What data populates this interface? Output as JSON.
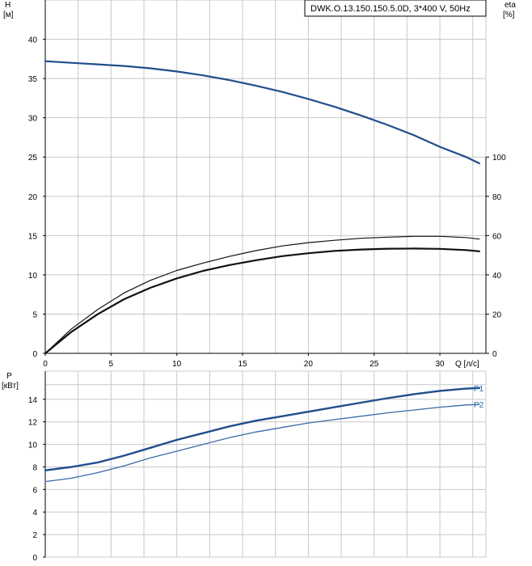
{
  "model_label": "DWK.O.13.150.150.5.0D, 3*400 V, 50Hz",
  "colors": {
    "curve": "#1f4e8c",
    "curve_p2": "#3a6aa8",
    "grid": "#c8c8c8",
    "axis": "#000000",
    "text": "#000000",
    "legend_text": "#1f6fb2"
  },
  "chart_data": [
    {
      "type": "line",
      "name": "head-efficiency",
      "xlabel": "Q [л/с]",
      "ylabel_left": "H\n[м]",
      "ylabel_right": "eta\n[%]",
      "x_range": [
        0,
        33.5
      ],
      "ylim_left": [
        0,
        45
      ],
      "ylim_right": [
        0,
        180
      ],
      "x_ticks": [
        0,
        5,
        10,
        15,
        20,
        25,
        30
      ],
      "y_ticks_left": [
        0,
        5,
        10,
        15,
        20,
        25,
        30,
        35,
        40
      ],
      "y_ticks_right": [
        0,
        20,
        40,
        60,
        80,
        100
      ],
      "grid": true,
      "series": [
        {
          "axis": "left",
          "x": [
            0,
            2,
            4,
            6,
            8,
            10,
            12,
            14,
            16,
            18,
            20,
            22,
            24,
            26,
            28,
            30,
            32,
            33
          ],
          "y": [
            37.2,
            37.0,
            36.8,
            36.6,
            36.3,
            35.9,
            35.4,
            34.8,
            34.1,
            33.3,
            32.4,
            31.4,
            30.3,
            29.1,
            27.8,
            26.3,
            25.0,
            24.2
          ]
        },
        {
          "axis": "right",
          "x": [
            0,
            2,
            4,
            6,
            8,
            10,
            12,
            14,
            16,
            18,
            20,
            22,
            24,
            26,
            28,
            30,
            32,
            33
          ],
          "y": [
            0,
            12.5,
            22.4,
            30.8,
            37.2,
            42.2,
            46.0,
            49.4,
            52.3,
            54.7,
            56.4,
            57.6,
            58.6,
            59.2,
            59.6,
            59.6,
            59.0,
            58.2
          ]
        },
        {
          "axis": "right",
          "x": [
            0,
            2,
            4,
            6,
            8,
            10,
            12,
            14,
            16,
            18,
            20,
            22,
            24,
            26,
            28,
            30,
            32,
            33
          ],
          "y": [
            0,
            11.0,
            20.0,
            27.6,
            33.4,
            38.2,
            42.0,
            45.0,
            47.4,
            49.5,
            51.0,
            52.2,
            52.9,
            53.3,
            53.4,
            53.2,
            52.6,
            52.0
          ]
        }
      ]
    },
    {
      "type": "line",
      "name": "power",
      "ylabel": "P\n[кВт]",
      "x_range": [
        0,
        33.5
      ],
      "ylim": [
        0,
        16.5
      ],
      "y_ticks": [
        0,
        2,
        4,
        6,
        8,
        10,
        12,
        14
      ],
      "grid": true,
      "series": [
        {
          "name": "P1",
          "x": [
            0,
            2,
            4,
            6,
            8,
            10,
            12,
            14,
            16,
            18,
            20,
            22,
            24,
            26,
            28,
            30,
            32,
            33
          ],
          "y": [
            7.7,
            8.0,
            8.4,
            9.0,
            9.7,
            10.4,
            11.0,
            11.6,
            12.1,
            12.5,
            12.9,
            13.3,
            13.7,
            14.1,
            14.45,
            14.75,
            14.95,
            15.0
          ]
        },
        {
          "name": "P2",
          "x": [
            0,
            2,
            4,
            6,
            8,
            10,
            12,
            14,
            16,
            18,
            20,
            22,
            24,
            26,
            28,
            30,
            32,
            33
          ],
          "y": [
            6.7,
            7.0,
            7.5,
            8.1,
            8.8,
            9.4,
            10.0,
            10.6,
            11.1,
            11.5,
            11.9,
            12.2,
            12.5,
            12.8,
            13.05,
            13.3,
            13.5,
            13.55
          ]
        }
      ]
    }
  ]
}
